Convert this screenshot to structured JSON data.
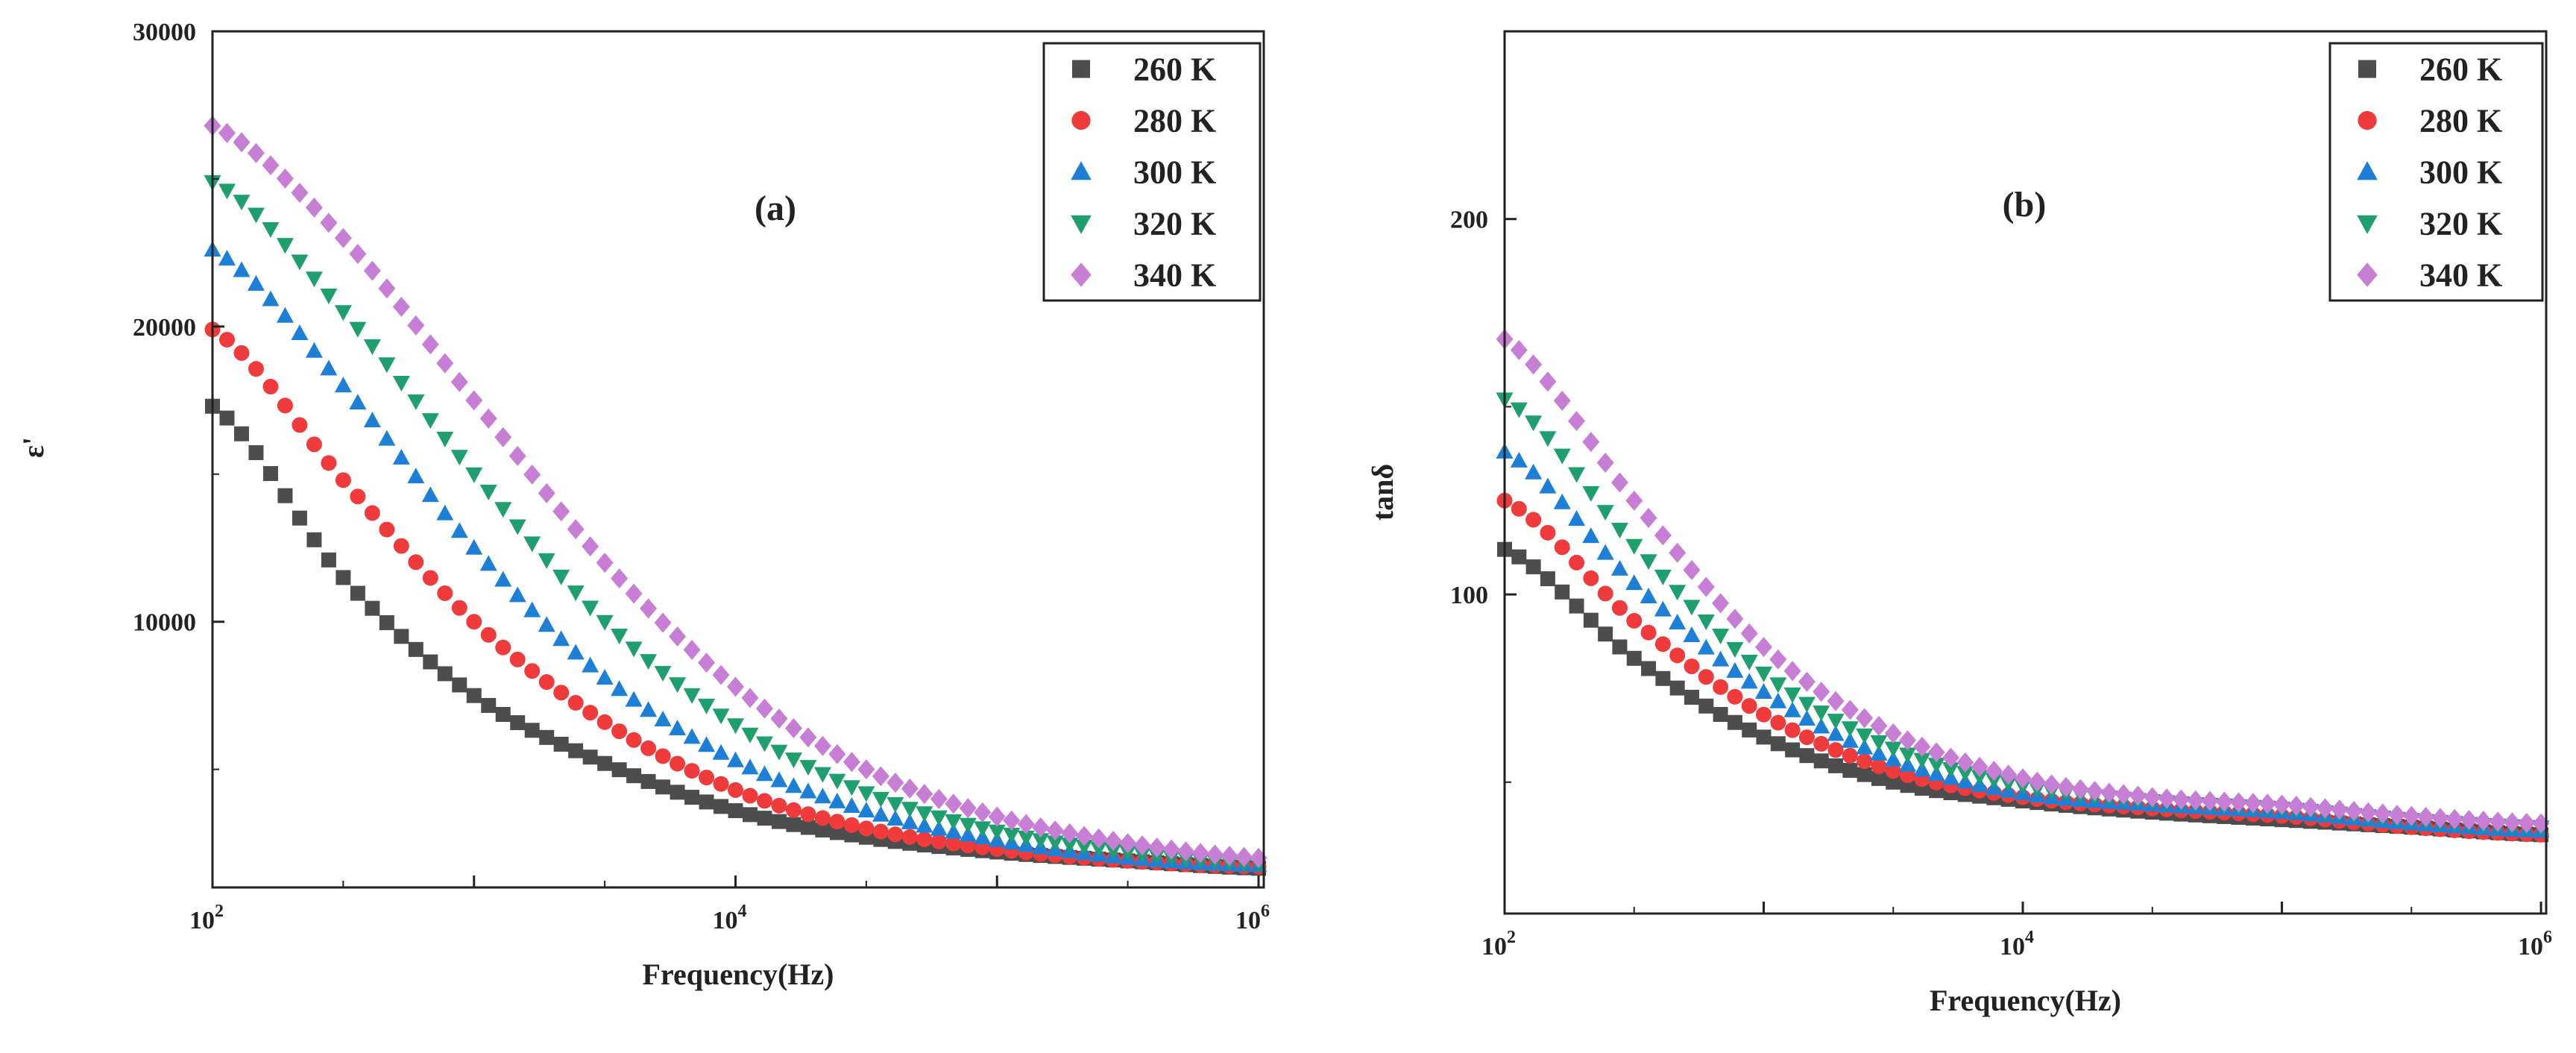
{
  "chart_data": [
    {
      "type": "scatter",
      "panel_label": "(a)",
      "title": "",
      "xlabel": "Frequency(Hz)",
      "ylabel": "ε'",
      "xscale": "log",
      "xlim_log10": [
        2,
        6.02
      ],
      "ylim": [
        1000,
        30000
      ],
      "xticks": [
        {
          "value": 100,
          "base": "10",
          "exp": "2"
        },
        {
          "value": 10000,
          "base": "10",
          "exp": "4"
        },
        {
          "value": 1000000,
          "base": "10",
          "exp": "6"
        }
      ],
      "yticks": [
        {
          "value": 10000,
          "label": "10000"
        },
        {
          "value": 20000,
          "label": "20000"
        },
        {
          "value": 30000,
          "label": "30000"
        }
      ],
      "legend_position": "top-right",
      "series": [
        {
          "name": "260 K",
          "marker": "square",
          "color": "#4d4d4d",
          "x": [
            100,
            316,
            1000,
            3162,
            10000,
            31623,
            100000,
            316228,
            1000000
          ],
          "y": [
            17300,
            11500,
            7500,
            5200,
            3600,
            2700,
            2200,
            1900,
            1650
          ]
        },
        {
          "name": "280 K",
          "marker": "circle",
          "color": "#ef3b3b",
          "x": [
            100,
            316,
            1000,
            3162,
            10000,
            31623,
            100000,
            316228,
            1000000
          ],
          "y": [
            19900,
            14800,
            10000,
            6600,
            4300,
            3000,
            2300,
            1900,
            1700
          ]
        },
        {
          "name": "300 K",
          "marker": "triangle-up",
          "color": "#1e7fd6",
          "x": [
            100,
            316,
            1000,
            3162,
            10000,
            31623,
            100000,
            316228,
            1000000
          ],
          "y": [
            22600,
            18000,
            12500,
            8100,
            5300,
            3600,
            2600,
            2000,
            1750
          ]
        },
        {
          "name": "320 K",
          "marker": "triangle-down",
          "color": "#1f9e6e",
          "x": [
            100,
            316,
            1000,
            3162,
            10000,
            31623,
            100000,
            316228,
            1000000
          ],
          "y": [
            24900,
            20500,
            15000,
            10000,
            6500,
            4200,
            2900,
            2200,
            1800
          ]
        },
        {
          "name": "340 K",
          "marker": "diamond",
          "color": "#c77fd6",
          "x": [
            100,
            316,
            1000,
            3162,
            10000,
            31623,
            100000,
            316228,
            1000000
          ],
          "y": [
            26800,
            23000,
            17500,
            12000,
            7800,
            5000,
            3400,
            2500,
            2000
          ]
        }
      ]
    },
    {
      "type": "scatter",
      "panel_label": "(b)",
      "title": "",
      "xlabel": "Frequency(Hz)",
      "ylabel": "tanδ",
      "xscale": "log",
      "xlim_log10": [
        2,
        6.02
      ],
      "ylim": [
        15,
        250
      ],
      "xticks": [
        {
          "value": 100,
          "base": "10",
          "exp": "2"
        },
        {
          "value": 10000,
          "base": "10",
          "exp": "4"
        },
        {
          "value": 1000000,
          "base": "10",
          "exp": "6"
        }
      ],
      "yticks": [
        {
          "value": 100,
          "label": "100"
        },
        {
          "value": 200,
          "label": "200"
        }
      ],
      "legend_position": "top-right",
      "series": [
        {
          "name": "260 K",
          "marker": "square",
          "color": "#4d4d4d",
          "x": [
            100,
            316,
            1000,
            3162,
            10000,
            31623,
            100000,
            316228,
            1000000
          ],
          "y": [
            112,
            83,
            62,
            50,
            45,
            42,
            40,
            38,
            36
          ]
        },
        {
          "name": "280 K",
          "marker": "circle",
          "color": "#ef3b3b",
          "x": [
            100,
            316,
            1000,
            3162,
            10000,
            31623,
            100000,
            316228,
            1000000
          ],
          "y": [
            125,
            93,
            68,
            53,
            46,
            43,
            41,
            38,
            36
          ]
        },
        {
          "name": "300 K",
          "marker": "triangle-up",
          "color": "#1e7fd6",
          "x": [
            100,
            316,
            1000,
            3162,
            10000,
            31623,
            100000,
            316228,
            1000000
          ],
          "y": [
            138,
            103,
            74,
            56,
            47,
            44,
            42,
            39,
            37
          ]
        },
        {
          "name": "320 K",
          "marker": "triangle-down",
          "color": "#1f9e6e",
          "x": [
            100,
            316,
            1000,
            3162,
            10000,
            31623,
            100000,
            316228,
            1000000
          ],
          "y": [
            152,
            113,
            79,
            59,
            49,
            45,
            43,
            40,
            38
          ]
        },
        {
          "name": "340 K",
          "marker": "diamond",
          "color": "#c77fd6",
          "x": [
            100,
            316,
            1000,
            3162,
            10000,
            31623,
            100000,
            316228,
            1000000
          ],
          "y": [
            168,
            125,
            86,
            63,
            51,
            46,
            44,
            41,
            39
          ]
        }
      ]
    }
  ]
}
